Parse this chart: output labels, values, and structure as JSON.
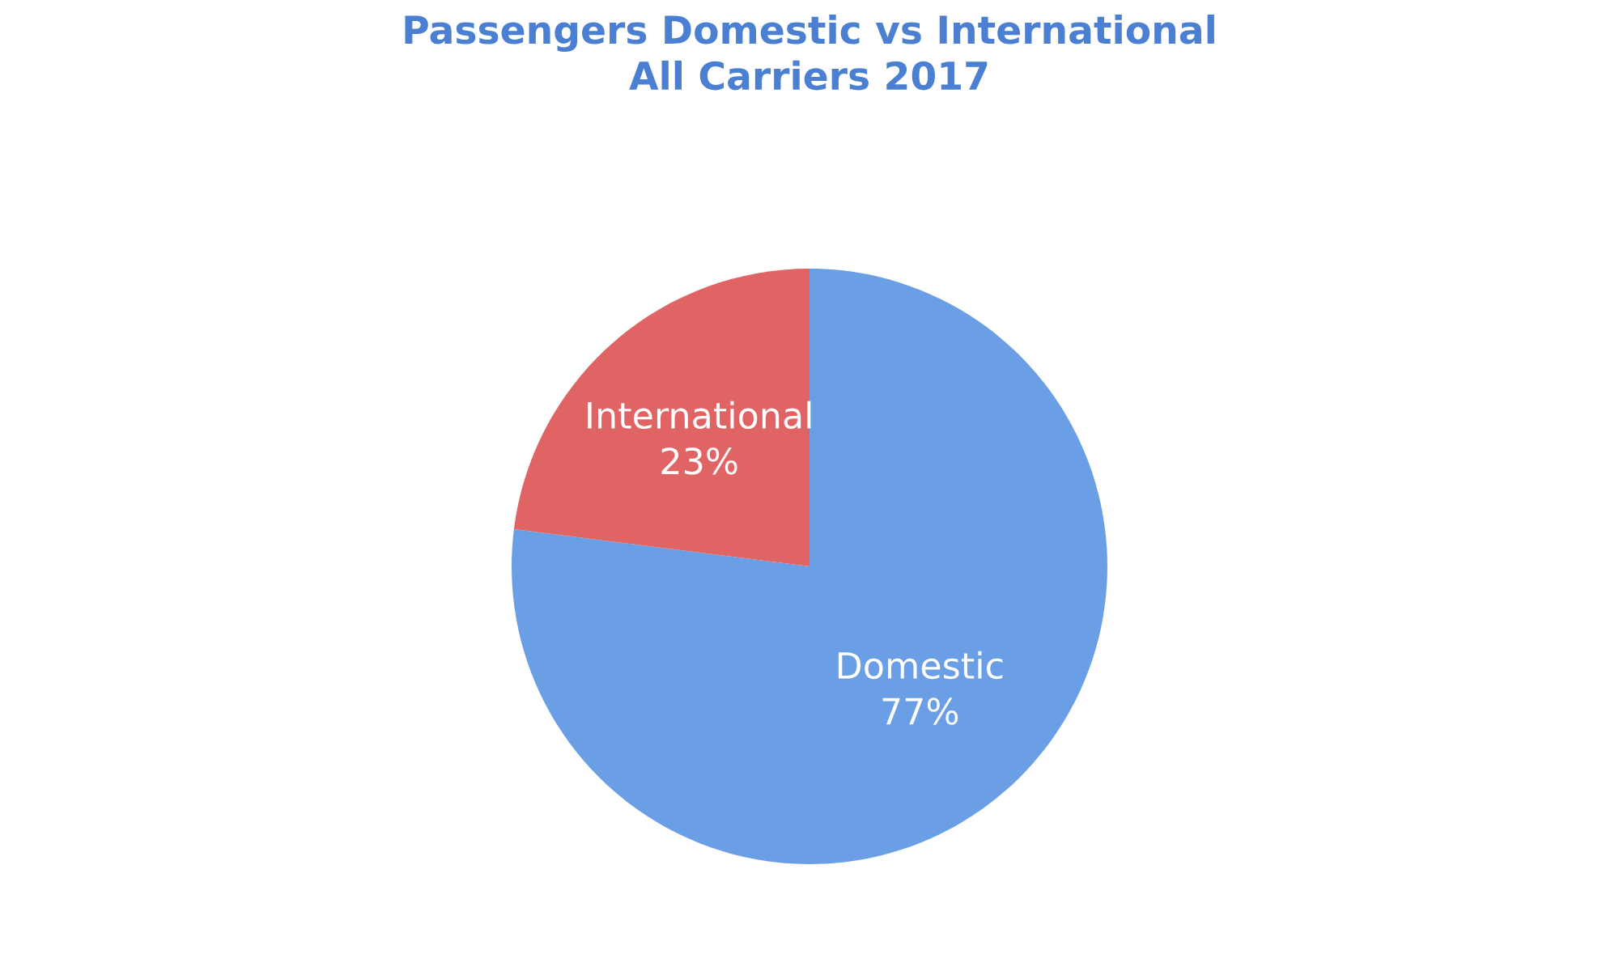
{
  "chart_data": {
    "type": "pie",
    "title": "Passengers Domestic vs International\nAll Carriers 2017",
    "categories": [
      "Domestic",
      "International"
    ],
    "values": [
      77,
      23
    ],
    "colors": [
      "#6a9fe6",
      "#e06464"
    ],
    "value_labels": [
      "77%",
      "23%"
    ]
  }
}
